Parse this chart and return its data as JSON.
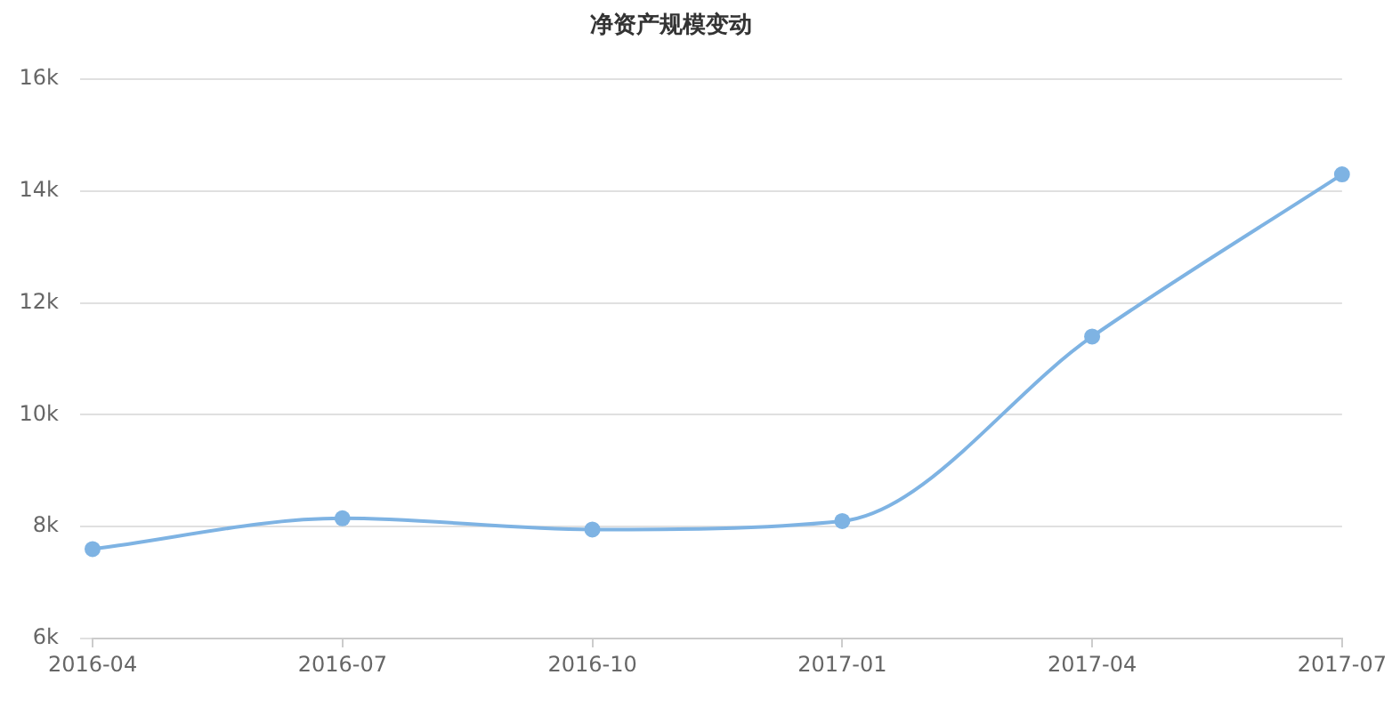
{
  "chart_data": {
    "type": "line",
    "title": "净资产规模变动",
    "categories": [
      "2016-04",
      "2016-07",
      "2016-10",
      "2017-01",
      "2017-04",
      "2017-07"
    ],
    "series": [
      {
        "color": "#7eb3e3",
        "values": [
          7600,
          8150,
          7950,
          8100,
          11400,
          14300
        ]
      }
    ],
    "ylim": [
      6000,
      16000
    ],
    "yticks": [
      {
        "value": 6000,
        "label": "6k"
      },
      {
        "value": 8000,
        "label": "8k"
      },
      {
        "value": 10000,
        "label": "10k"
      },
      {
        "value": 12000,
        "label": "12k"
      },
      {
        "value": 14000,
        "label": "14k"
      },
      {
        "value": 16000,
        "label": "16k"
      }
    ],
    "grid": "y",
    "legend": false,
    "marker": "circle",
    "line_style": "solid"
  }
}
